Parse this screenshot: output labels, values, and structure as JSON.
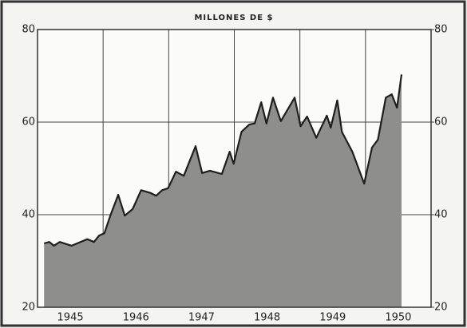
{
  "chart_data": {
    "type": "area",
    "title": "MILLONES DE $",
    "x": [
      1945.1,
      1945.18,
      1945.25,
      1945.34,
      1945.52,
      1945.76,
      1945.86,
      1945.94,
      1946.02,
      1946.11,
      1946.23,
      1946.33,
      1946.45,
      1946.58,
      1946.72,
      1946.81,
      1946.9,
      1946.99,
      1947.11,
      1947.23,
      1947.41,
      1947.51,
      1947.63,
      1947.81,
      1947.93,
      1947.99,
      1948.11,
      1948.23,
      1948.31,
      1948.41,
      1948.49,
      1948.59,
      1948.71,
      1948.92,
      1949.01,
      1949.11,
      1949.25,
      1949.41,
      1949.47,
      1949.57,
      1949.64,
      1949.8,
      1949.98,
      1950.1,
      1950.19,
      1950.31,
      1950.4,
      1950.48,
      1950.55
    ],
    "values": [
      33.8,
      34.1,
      33.3,
      34.1,
      33.3,
      34.7,
      34.1,
      35.5,
      36.0,
      39.8,
      44.3,
      39.8,
      41.2,
      45.3,
      44.7,
      44.1,
      45.3,
      45.7,
      49.3,
      48.4,
      54.8,
      49.0,
      49.5,
      48.8,
      53.6,
      51.0,
      57.9,
      59.5,
      59.7,
      64.3,
      59.7,
      65.3,
      60.2,
      65.3,
      59.1,
      61.2,
      56.6,
      61.4,
      58.8,
      64.7,
      57.9,
      53.6,
      46.7,
      54.5,
      56.2,
      65.3,
      66.0,
      63.1,
      70.3
    ],
    "color": "#8e8e8c",
    "xlim": [
      1945,
      1951
    ],
    "xticks": [
      1945,
      1946,
      1947,
      1948,
      1949,
      1950
    ],
    "ylim": [
      20,
      80
    ],
    "yticks": [
      20,
      40,
      60,
      80
    ],
    "y2lim": [
      20,
      80
    ],
    "y2ticks": [
      20,
      40,
      60,
      80
    ],
    "grid": true
  }
}
